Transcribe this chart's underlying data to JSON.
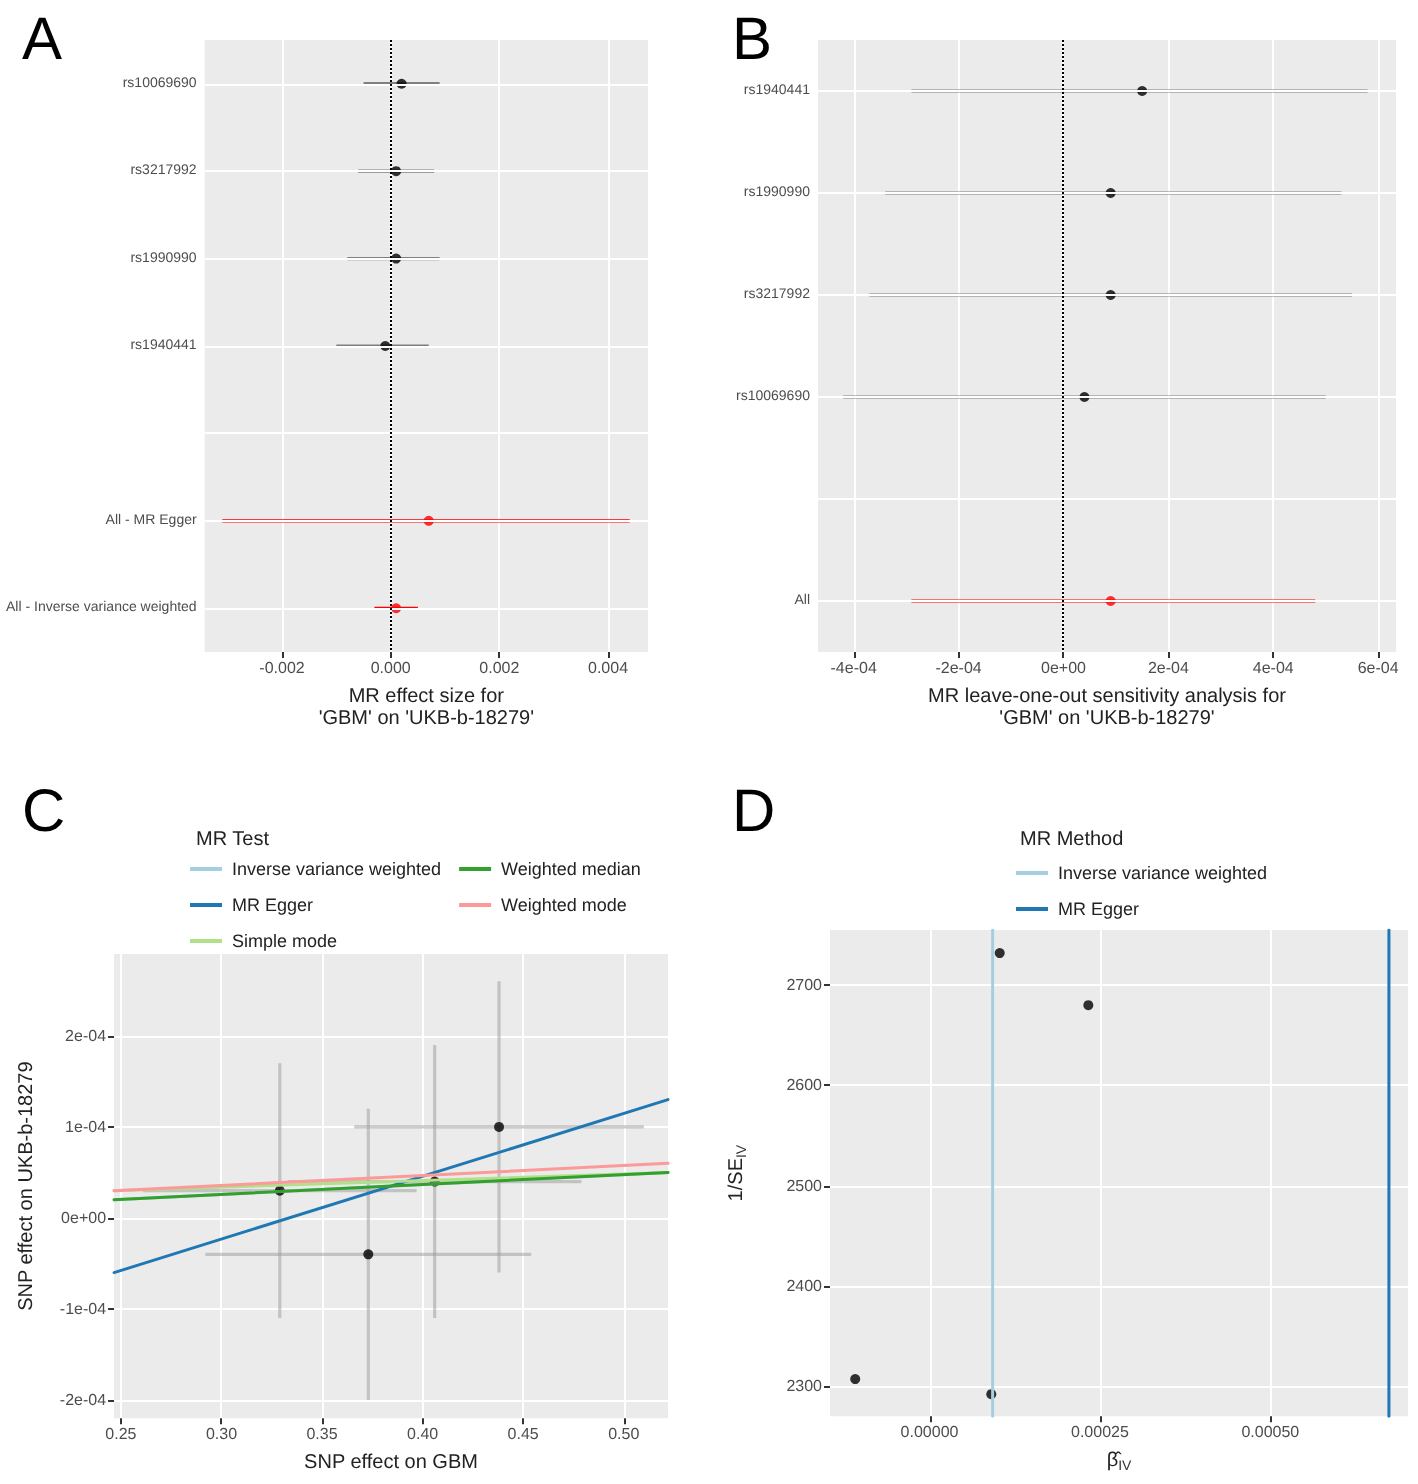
{
  "chart_data": [
    {
      "type": "scatter",
      "title": "A",
      "xlabel": "MR effect size for\n'GBM' on 'UKB-b-18279'",
      "orientation": "horizontal",
      "marker": "circle",
      "grid": true,
      "categories": [
        "rs10069690",
        "rs3217992",
        "rs1990990",
        "rs1940441",
        null,
        "All - MR Egger",
        "All - Inverse variance weighted"
      ],
      "values": [
        0.0002,
        0.0001,
        0.0001,
        -0.0001,
        null,
        0.0007,
        0.0001
      ],
      "errors": [
        [
          -0.0005,
          0.0009
        ],
        [
          -0.0006,
          0.0008
        ],
        [
          -0.0008,
          0.0009
        ],
        [
          -0.001,
          0.0007
        ],
        null,
        [
          -0.0031,
          0.0044
        ],
        [
          -0.0003,
          0.0005
        ]
      ],
      "colors": [
        "#000000",
        "#000000",
        "#000000",
        "#000000",
        null,
        "#ff0000",
        "#ff0000"
      ],
      "xlim": [
        -0.003425,
        0.004736
      ],
      "xticks": [
        -0.002,
        {
          "value": 0,
          "label": "0.000"
        },
        0.002,
        0.004
      ],
      "ref_lines": [
        {
          "axis": "x",
          "value": 0,
          "line_style": "dotted",
          "color": "#000000"
        }
      ]
    },
    {
      "type": "scatter",
      "title": "B",
      "xlabel": "MR leave-one-out sensitivity analysis for\n'GBM' on 'UKB-b-18279'",
      "orientation": "horizontal",
      "marker": "circle",
      "grid": true,
      "categories": [
        "rs1940441",
        "rs1990990",
        "rs3217992",
        "rs10069690",
        null,
        "All"
      ],
      "values": [
        0.00015,
        9e-05,
        9e-05,
        4e-05,
        null,
        9e-05
      ],
      "errors": [
        [
          -0.00029,
          0.00058
        ],
        [
          -0.00034,
          0.00053
        ],
        [
          -0.00037,
          0.00055
        ],
        [
          -0.00042,
          0.0005
        ],
        null,
        [
          -0.00029,
          0.00048
        ]
      ],
      "colors": [
        "#000000",
        "#000000",
        "#000000",
        "#000000",
        null,
        "#ff0000"
      ],
      "xlim": [
        -0.000468,
        0.000634
      ],
      "xticks": [
        {
          "value": -0.0004,
          "label": "-4e-04"
        },
        {
          "value": -0.0002,
          "label": "-2e-04"
        },
        {
          "value": 0,
          "label": "0e+00"
        },
        {
          "value": 0.0002,
          "label": "2e-04"
        },
        {
          "value": 0.0004,
          "label": "4e-04"
        },
        {
          "value": 0.0006,
          "label": "6e-04"
        }
      ],
      "ref_lines": [
        {
          "axis": "x",
          "value": 0,
          "line_style": "dotted",
          "color": "#000000"
        }
      ]
    },
    {
      "type": "scatter",
      "title": "C",
      "xlabel": "SNP effect on GBM",
      "ylabel": "SNP effect on UKB-b-18279",
      "legend_title": "MR Test",
      "legend": "top",
      "grid": true,
      "xlim": [
        0.2466,
        0.522
      ],
      "xticks": [
        0.25,
        {
          "value": 0.3,
          "label": "0.30"
        },
        0.35,
        {
          "value": 0.4,
          "label": "0.40"
        },
        0.45,
        {
          "value": 0.5,
          "label": "0.50"
        }
      ],
      "ylim": [
        -0.00022,
        0.00029
      ],
      "yticks": [
        {
          "value": -0.0002,
          "label": "-2e-04"
        },
        {
          "value": -0.0001,
          "label": "-1e-04"
        },
        {
          "value": 0,
          "label": "0e+00"
        },
        {
          "value": 0.0001,
          "label": "1e-04"
        },
        {
          "value": 0.0002,
          "label": "2e-04"
        }
      ],
      "series": [
        {
          "type": "scatter",
          "marker": "circle",
          "color": "#000000",
          "x": [
            0.329,
            0.373,
            0.406,
            0.438
          ],
          "values": [
            3e-05,
            -4e-05,
            4e-05,
            0.0001
          ],
          "errors": [
            0.00014,
            0.00016,
            0.00015,
            0.00016
          ],
          "xerrors": [
            0.068,
            0.081,
            0.073,
            0.072
          ]
        },
        {
          "type": "line",
          "marker": "none",
          "name": "Inverse variance weighted",
          "color": "#a6cee3",
          "x": [
            0.2466,
            0.522
          ],
          "values": [
            2e-05,
            5e-05
          ]
        },
        {
          "type": "line",
          "marker": "none",
          "name": "MR Egger",
          "color": "#1f78b4",
          "x": [
            0.2466,
            0.522
          ],
          "values": [
            -6e-05,
            0.00013
          ]
        },
        {
          "type": "line",
          "marker": "none",
          "name": "Simple mode",
          "color": "#b2df8a",
          "x": [
            0.2466,
            0.522
          ],
          "values": [
            3e-05,
            5e-05
          ]
        },
        {
          "type": "line",
          "marker": "none",
          "name": "Weighted median",
          "color": "#33a02c",
          "x": [
            0.2466,
            0.522
          ],
          "values": [
            2e-05,
            5e-05
          ]
        },
        {
          "type": "line",
          "marker": "none",
          "name": "Weighted mode",
          "color": "#fb9a99",
          "x": [
            0.2466,
            0.522
          ],
          "values": [
            3e-05,
            6e-05
          ]
        }
      ]
    },
    {
      "type": "scatter",
      "title": "D",
      "xlabel": "β̂$_{IV}$",
      "ylabel": "1/SE$_{IV}$",
      "legend_title": "MR Method",
      "legend": "top",
      "grid": true,
      "xlim": [
        -0.000146,
        0.000702
      ],
      "xticks": [
        {
          "value": 0,
          "label": "0.00000"
        },
        {
          "value": 0.00025,
          "label": "0.00025"
        },
        {
          "value": 0.0005,
          "label": "0.00050"
        }
      ],
      "ylim": [
        2270,
        2755
      ],
      "yticks": [
        2300,
        2400,
        2500,
        2600,
        2700
      ],
      "series": [
        {
          "type": "scatter",
          "marker": "circle",
          "color": "#000000",
          "x": [
            -0.000109,
            9.06e-05,
            0.000103,
            0.000233
          ],
          "values": [
            2307,
            2292,
            2732,
            2680
          ]
        },
        {
          "type": "line",
          "marker": "none",
          "name": "Inverse variance weighted",
          "color": "#a6cee3",
          "x": [
            9.26e-05,
            9.26e-05
          ],
          "values": [
            2270,
            2755
          ]
        },
        {
          "type": "line",
          "marker": "none",
          "name": "MR Egger",
          "color": "#1f78b4",
          "x": [
            0.000674,
            0.000674
          ],
          "values": [
            2270,
            2755
          ]
        }
      ]
    }
  ]
}
